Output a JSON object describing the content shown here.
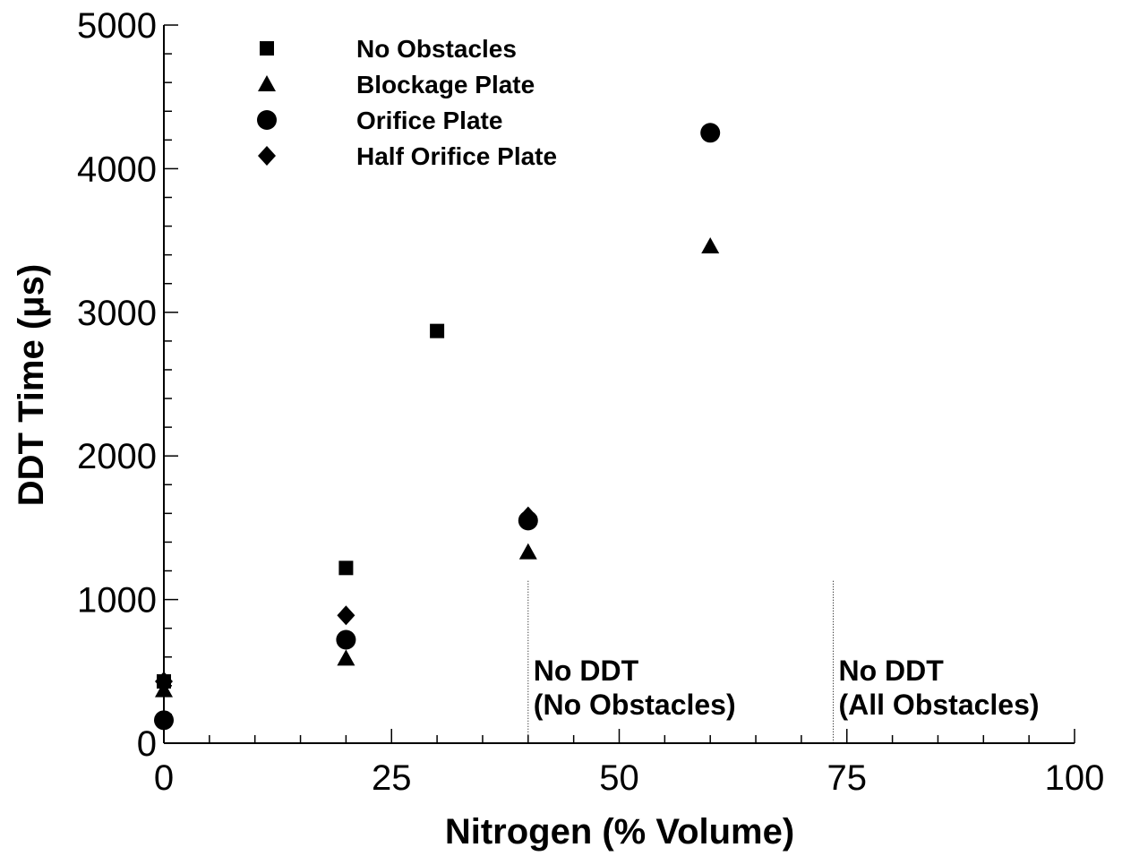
{
  "chart_data": {
    "type": "scatter",
    "xlabel": "Nitrogen (% Volume)",
    "ylabel": "DDT Time (μs)",
    "xlim": [
      0,
      100
    ],
    "ylim": [
      0,
      5000
    ],
    "x_ticks": [
      0,
      25,
      50,
      75,
      100
    ],
    "y_ticks": [
      0,
      1000,
      2000,
      3000,
      4000,
      5000
    ],
    "grid": false,
    "legend_position": "top-left",
    "series": [
      {
        "name": "No Obstacles",
        "marker": "square",
        "points": [
          [
            0,
            430
          ],
          [
            20,
            1220
          ],
          [
            30,
            2870
          ]
        ]
      },
      {
        "name": "Blockage Plate",
        "marker": "triangle",
        "points": [
          [
            0,
            370
          ],
          [
            20,
            590
          ],
          [
            40,
            1330
          ],
          [
            60,
            3460
          ]
        ]
      },
      {
        "name": "Orifice Plate",
        "marker": "circle",
        "points": [
          [
            0,
            160
          ],
          [
            20,
            720
          ],
          [
            40,
            1550
          ],
          [
            60,
            4250
          ]
        ]
      },
      {
        "name": "Half Orifice Plate",
        "marker": "diamond",
        "points": [
          [
            0,
            430
          ],
          [
            20,
            890
          ],
          [
            40,
            1580
          ]
        ]
      }
    ],
    "annotations": [
      {
        "x": 40,
        "lines": [
          "No DDT",
          "(No Obstacles)"
        ]
      },
      {
        "x": 73.5,
        "lines": [
          "No DDT",
          "(All Obstacles)"
        ]
      }
    ]
  }
}
